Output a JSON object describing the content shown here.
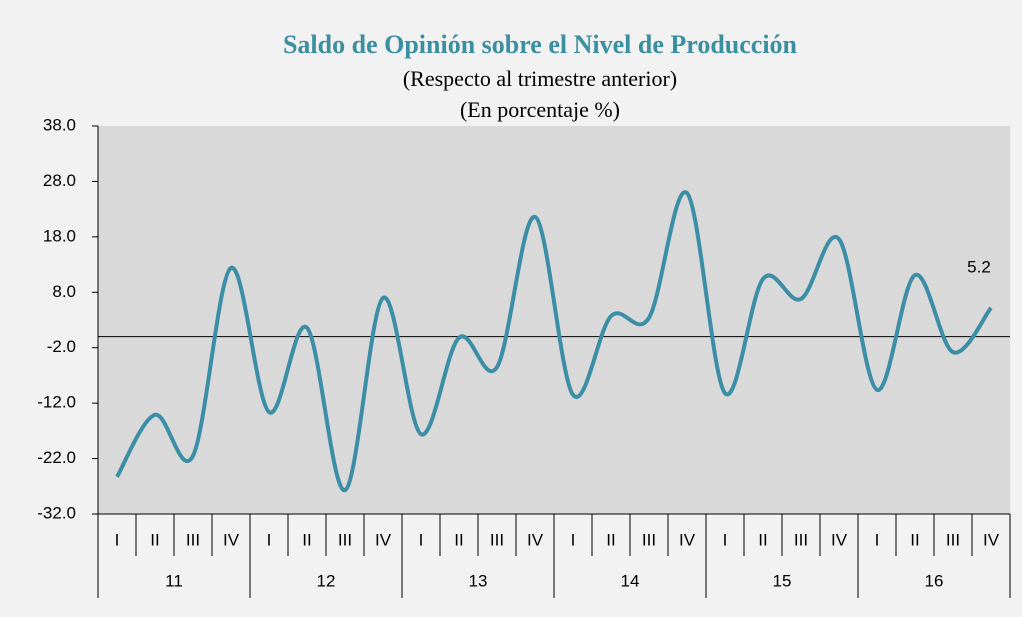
{
  "chart_data": {
    "type": "line",
    "title": "Saldo de Opinión sobre el Nivel de Producción",
    "subtitle": [
      "(Respecto al trimestre anterior)",
      "(En porcentaje %)"
    ],
    "categories": [
      "I",
      "II",
      "III",
      "IV",
      "I",
      "II",
      "III",
      "IV",
      "I",
      "II",
      "III",
      "IV",
      "I",
      "II",
      "III",
      "IV",
      "I",
      "II",
      "III",
      "IV",
      "I",
      "II",
      "III",
      "IV"
    ],
    "groups": [
      "11",
      "12",
      "13",
      "14",
      "15",
      "16"
    ],
    "series": [
      {
        "color": "#3b8ea5",
        "values": [
          -25.3,
          -14.1,
          -21.5,
          12.4,
          -13.6,
          1.6,
          -27.7,
          7.0,
          -17.6,
          -0.2,
          -5.5,
          21.6,
          -10.5,
          3.7,
          3.4,
          25.9,
          -10.2,
          10.4,
          6.8,
          17.6,
          -9.6,
          11.1,
          -2.8,
          5.2
        ]
      }
    ],
    "labeled_points": [
      23
    ],
    "ylim": [
      -32,
      38
    ],
    "yticks": [
      {
        "value": 38,
        "label": "38.0"
      },
      {
        "value": 28,
        "label": "28.0"
      },
      {
        "value": 18,
        "label": "18.0"
      },
      {
        "value": 8,
        "label": "8.0"
      },
      {
        "value": -2,
        "label": "-2.0"
      },
      {
        "value": -12,
        "label": "-12.0"
      },
      {
        "value": -22,
        "label": "-22.0"
      },
      {
        "value": -32,
        "label": "-32.0"
      }
    ],
    "reference_line": 0,
    "plot_background": "#d9d9d9",
    "title_color": "#3a8fa0"
  }
}
